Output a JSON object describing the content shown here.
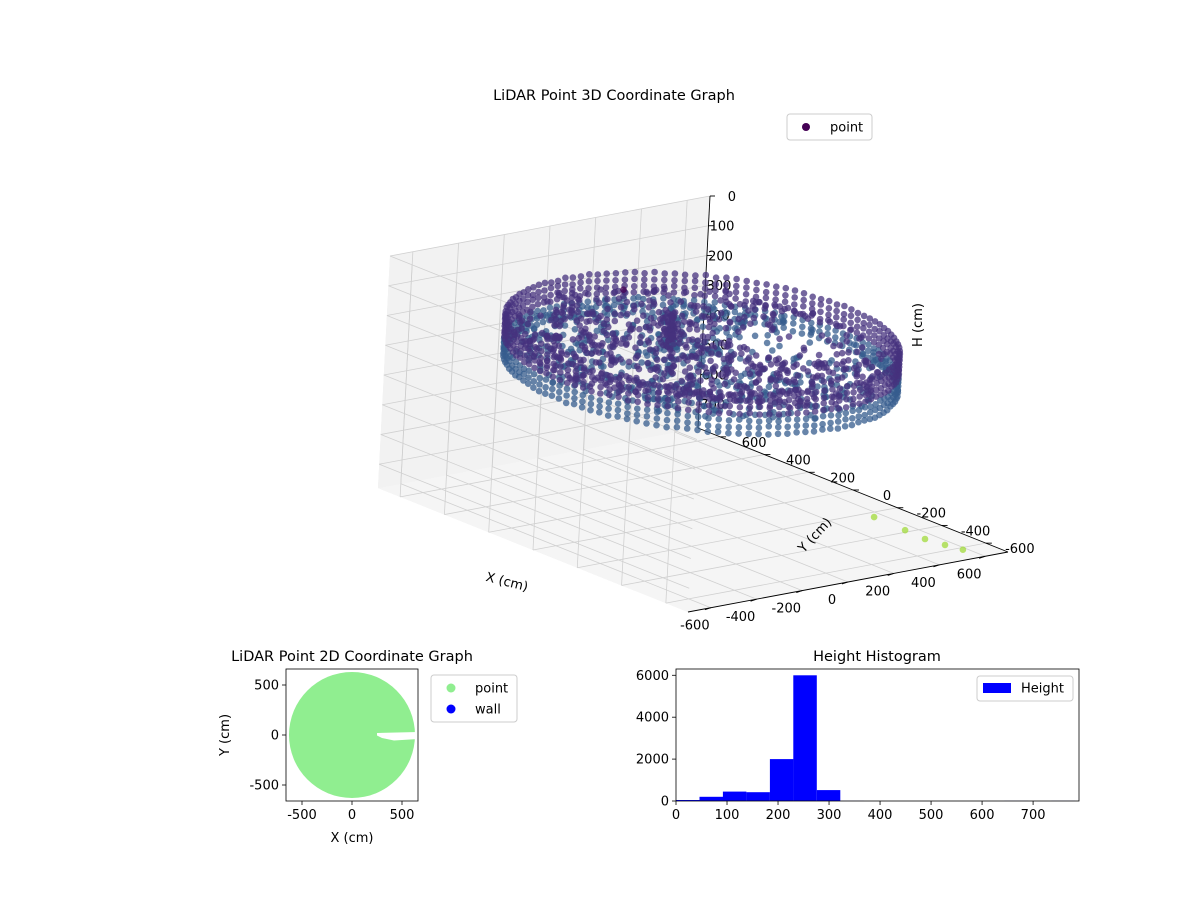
{
  "chart_data": [
    {
      "type": "scatter",
      "projection": "3d",
      "title": "LiDAR Point 3D Coordinate Graph",
      "xlabel": "X (cm)",
      "ylabel": "Y (cm)",
      "zlabel": "H (cm)",
      "xlim": [
        -700,
        700
      ],
      "ylim": [
        -700,
        700
      ],
      "zlim": [
        0,
        780
      ],
      "z_inverted": true,
      "xticks": [
        "-600",
        "-400",
        "-200",
        "0",
        "200",
        "400",
        "600"
      ],
      "yticks": [
        "-600",
        "-400",
        "-200",
        "0",
        "200",
        "400",
        "600"
      ],
      "zticks": [
        "0",
        "100",
        "200",
        "300",
        "400",
        "500",
        "600",
        "700"
      ],
      "grid": true,
      "legend": {
        "placement": "top-right",
        "entries": [
          "point"
        ]
      },
      "series": [
        {
          "name": "point",
          "color": "#440154",
          "colormap": "viridis"
        }
      ],
      "structure": {
        "wall_radius": 620,
        "wall_height_range": [
          150,
          300
        ],
        "floor_height": 260,
        "outliers": [
          {
            "x": 380,
            "y": -420,
            "h": 700
          },
          {
            "x": 420,
            "y": -520,
            "h": 720
          },
          {
            "x": 470,
            "y": -560,
            "h": 745
          },
          {
            "x": 520,
            "y": -600,
            "h": 760
          },
          {
            "x": 560,
            "y": -640,
            "h": 770
          },
          {
            "x": -120,
            "y": 240,
            "h": 60
          }
        ]
      }
    },
    {
      "type": "scatter",
      "title": "LiDAR Point 2D Coordinate Graph",
      "xlabel": "X (cm)",
      "ylabel": "Y (cm)",
      "xlim": [
        -660,
        660
      ],
      "ylim": [
        -660,
        660
      ],
      "xticks": [
        "-500",
        "0",
        "500"
      ],
      "yticks": [
        "-500",
        "0",
        "500"
      ],
      "legend": {
        "placement": "outside-right",
        "entries": [
          "point",
          "wall"
        ]
      },
      "series": [
        {
          "name": "point",
          "color": "#90ee90"
        },
        {
          "name": "wall",
          "color": "#0000ff"
        }
      ],
      "disc_radius": 630
    },
    {
      "type": "bar",
      "title": "Height Histogram",
      "xlim": [
        0,
        790
      ],
      "ylim": [
        0,
        6300
      ],
      "xticks": [
        "0",
        "100",
        "200",
        "300",
        "400",
        "500",
        "600",
        "700"
      ],
      "yticks": [
        "0",
        "2000",
        "4000",
        "6000"
      ],
      "legend": {
        "placement": "top-right",
        "entries": [
          "Height"
        ]
      },
      "series": [
        {
          "name": "Height",
          "color": "#0000ff"
        }
      ],
      "bin_edges": [
        0,
        46,
        92,
        138,
        184,
        230,
        276,
        322,
        368,
        414,
        460,
        506,
        552,
        598,
        644,
        690,
        736,
        782
      ],
      "values": [
        50,
        200,
        450,
        420,
        2000,
        6000,
        520,
        3,
        2,
        2,
        1,
        1,
        1,
        2,
        3,
        2,
        4
      ]
    }
  ]
}
